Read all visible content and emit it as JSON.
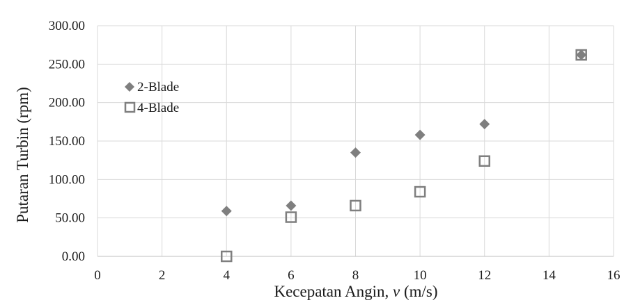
{
  "chart_data": {
    "type": "scatter",
    "title": "",
    "xlabel": "Kecepatan Angin, v (m/s)",
    "xlabel_parts": {
      "main": "Kecepatan Angin, ",
      "var": "v",
      "unit": " (m/s)"
    },
    "ylabel": "Putaran Turbin (rpm)",
    "xlim": [
      0,
      16
    ],
    "ylim": [
      0,
      300
    ],
    "x_ticks": [
      "0",
      "2",
      "4",
      "6",
      "8",
      "10",
      "12",
      "14",
      "16"
    ],
    "y_ticks": [
      "0.00",
      "50.00",
      "100.00",
      "150.00",
      "200.00",
      "250.00",
      "300.00"
    ],
    "grid": true,
    "legend_position": "left",
    "series": [
      {
        "name": "2-Blade",
        "marker": "diamond",
        "color": "#7f7f7f",
        "x": [
          4,
          6,
          8,
          10,
          12,
          15
        ],
        "y": [
          59,
          66,
          135,
          158,
          172,
          262
        ]
      },
      {
        "name": "4-Blade",
        "marker": "square-open",
        "color": "#7f7f7f",
        "x": [
          4,
          6,
          8,
          10,
          12,
          15
        ],
        "y": [
          0,
          51,
          66,
          84,
          124,
          262
        ]
      }
    ]
  }
}
